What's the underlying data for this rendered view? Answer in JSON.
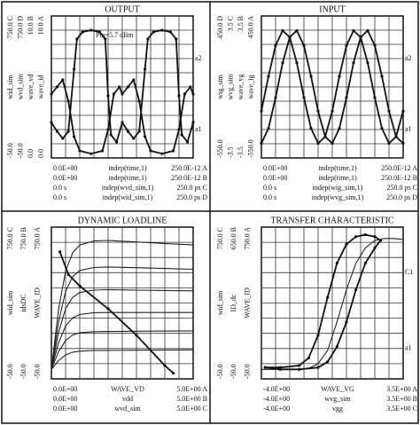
{
  "chart_data": [
    {
      "type": "line",
      "title": "OUTPUT",
      "annotation": "Pin=5.7 dBm",
      "grid": true,
      "xlim": [
        0,
        250
      ],
      "ylim": [
        -50,
        750
      ],
      "y_labels": [
        {
          "top": "750.0 C",
          "name": "wid_sim",
          "bottom": "-50.0"
        },
        {
          "top": "750.0 D",
          "name": "wvd_sim",
          "bottom": "-50.0"
        },
        {
          "top": "10.0 B",
          "name": "wave_vd",
          "bottom": "0.0"
        },
        {
          "top": "10.0 A",
          "name": "wave_id",
          "bottom": "0.0"
        }
      ],
      "x_rows": [
        {
          "min": "0.0E+00",
          "name": "indep(time,1)",
          "max": "250.0E-12 A"
        },
        {
          "min": "0.0E+00",
          "name": "indep(time,1)",
          "max": "250.0E-12 B"
        },
        {
          "min": "0.0  s",
          "name": "indep(wvd_sim,1)",
          "max": "250.0  ps C"
        },
        {
          "min": "0.0  s",
          "name": "indep(wid_sim,1)",
          "max": "250.0  ps D"
        }
      ],
      "right_labels": [
        "a2",
        "a1"
      ],
      "series": [
        {
          "color": "#111",
          "marker": true,
          "x": [
            0,
            10,
            20,
            30,
            40,
            45,
            55,
            70,
            85,
            95,
            100,
            105,
            115,
            125,
            135,
            145,
            155,
            165,
            170,
            180,
            195,
            210,
            220,
            225,
            230,
            240,
            250
          ],
          "values": [
            150,
            100,
            60,
            100,
            450,
            620,
            660,
            670,
            660,
            620,
            300,
            80,
            40,
            150,
            100,
            60,
            100,
            450,
            620,
            660,
            670,
            660,
            620,
            300,
            80,
            40,
            150
          ]
        },
        {
          "color": "#111",
          "marker": true,
          "ylim": [
            0,
            10
          ],
          "x": [
            0,
            10,
            20,
            30,
            40,
            50,
            70,
            90,
            100,
            110,
            120,
            125,
            135,
            145,
            155,
            165,
            175,
            195,
            215,
            225,
            235,
            245,
            250
          ],
          "values": [
            4.5,
            5,
            5.5,
            4,
            1.5,
            0.5,
            0.3,
            0.5,
            2,
            4.5,
            5,
            4.5,
            5,
            5.5,
            4,
            1.5,
            0.5,
            0.3,
            0.5,
            2,
            4.5,
            5,
            4.5
          ]
        }
      ]
    },
    {
      "type": "line",
      "title": "INPUT",
      "grid": true,
      "xlim": [
        0,
        250
      ],
      "ylim": [
        -550,
        450
      ],
      "y_labels": [
        {
          "top": "450.0 D",
          "name": "wig_sim",
          "bottom": "-550.0"
        },
        {
          "top": "3.5 C",
          "name": "wvg_sim",
          "bottom": "-3.5"
        },
        {
          "top": "3.5 B",
          "name": "wave_vg",
          "bottom": "-3.5"
        },
        {
          "top": "450.0 A",
          "name": "wave_ig",
          "bottom": "-550.0"
        }
      ],
      "x_rows": [
        {
          "min": "0.0E+00",
          "name": "indep(time,1)",
          "max": "250.0E-12 A"
        },
        {
          "min": "0.0E+00",
          "name": "indep(time,1)",
          "max": "250.0E-12 B"
        },
        {
          "min": "0.0  s",
          "name": "indep(wig_sim,1)",
          "max": "250.0  ps C"
        },
        {
          "min": "0.0  s",
          "name": "indep(wvg_sim,1)",
          "max": "250.0  ps D"
        }
      ],
      "right_labels": [
        "a2",
        "a1"
      ],
      "series": [
        {
          "color": "#111",
          "marker": true,
          "ylim": [
            -3.5,
            3.5
          ],
          "x": [
            0,
            12.5,
            25,
            37.5,
            50,
            62.5,
            75,
            87.5,
            100,
            112.5,
            125,
            137.5,
            150,
            162.5,
            175,
            187.5,
            200,
            212.5,
            225,
            237.5,
            250
          ],
          "values": [
            -1.19,
            0.52,
            2.04,
            2.78,
            2.45,
            1.19,
            -0.52,
            -2.04,
            -2.78,
            -2.45,
            -1.19,
            0.52,
            2.04,
            2.78,
            2.45,
            1.19,
            -0.52,
            -2.04,
            -2.78,
            -2.45,
            -1.19
          ]
        },
        {
          "color": "#111",
          "marker": true,
          "x": [
            0,
            12.5,
            25,
            37.5,
            50,
            62.5,
            75,
            87.5,
            100,
            112.5,
            125,
            137.5,
            150,
            162.5,
            175,
            187.5,
            200,
            212.5,
            225,
            237.5,
            250
          ],
          "values": [
            -447,
            -342,
            -125,
            120,
            300,
            347,
            242,
            25,
            -220,
            -400,
            -447,
            -342,
            -125,
            120,
            300,
            347,
            242,
            25,
            -220,
            -400,
            -447
          ]
        }
      ]
    },
    {
      "type": "line",
      "title": "DYNAMIC LOADLINE",
      "grid": true,
      "xlim": [
        0,
        5
      ],
      "ylim": [
        -50,
        750
      ],
      "y_labels": [
        {
          "top": "750.0 C",
          "name": "wid_sim",
          "bottom": "-50.0"
        },
        {
          "top": "750.0 B",
          "name": "idsDC",
          "bottom": "-50.0"
        },
        {
          "top": "750.0 A",
          "name": "WAVE_ID",
          "bottom": "-50.0"
        }
      ],
      "x_rows": [
        {
          "min": "0.0E+00",
          "name": "WAVE_VD",
          "max": "5.0E+00 A"
        },
        {
          "min": "0.0E+00",
          "name": "vdd",
          "max": "5.0E+00 B"
        },
        {
          "min": "0.0E+00",
          "name": "wvd_sim",
          "max": "5.0E+00 C"
        }
      ],
      "series": [
        {
          "color": "#222",
          "x": [
            0,
            0.25,
            0.5,
            0.75,
            1,
            1.5,
            2,
            3,
            4,
            5
          ],
          "values": [
            0,
            46,
            76,
            91,
            96,
            100,
            100,
            101,
            102,
            103
          ]
        },
        {
          "color": "#222",
          "x": [
            0,
            0.25,
            0.5,
            0.75,
            1,
            1.5,
            2,
            3,
            4,
            5
          ],
          "values": [
            0,
            92,
            152,
            181,
            193,
            199,
            200,
            201,
            202,
            203
          ]
        },
        {
          "color": "#222",
          "x": [
            0,
            0.25,
            0.5,
            0.75,
            1,
            1.5,
            2,
            3,
            4,
            5
          ],
          "values": [
            0,
            139,
            229,
            272,
            289,
            299,
            300,
            300,
            300,
            300
          ]
        },
        {
          "color": "#222",
          "x": [
            0,
            0.25,
            0.5,
            0.75,
            1,
            1.5,
            2,
            3,
            4,
            5
          ],
          "values": [
            0,
            194,
            320,
            380,
            405,
            418,
            420,
            418,
            416,
            414
          ]
        },
        {
          "color": "#222",
          "x": [
            0,
            0.25,
            0.5,
            0.75,
            1,
            1.5,
            2,
            3,
            4,
            5
          ],
          "values": [
            0,
            249,
            411,
            489,
            521,
            537,
            540,
            536,
            532,
            528
          ]
        },
        {
          "color": "#222",
          "x": [
            0,
            0.25,
            0.5,
            0.75,
            1,
            1.5,
            2,
            3,
            4,
            5
          ],
          "values": [
            0,
            314,
            518,
            615,
            656,
            677,
            680,
            672,
            664,
            656
          ]
        },
        {
          "color": "#111",
          "marker": true,
          "x": [
            0.3,
            0.6,
            1,
            2,
            3,
            4,
            4.3
          ],
          "values": [
            620,
            500,
            440,
            320,
            180,
            20,
            -20
          ]
        }
      ]
    },
    {
      "type": "line",
      "title": "TRANSFER CHARACTERISTIC",
      "grid": true,
      "xlim": [
        -4,
        3.5
      ],
      "ylim": [
        -50,
        750
      ],
      "y_labels": [
        {
          "top": "750.0 C",
          "name": "wid_sim",
          "bottom": "-50.0"
        },
        {
          "top": "650.0 B",
          "name": "ID_dc",
          "bottom": "-50.0"
        },
        {
          "top": "750.0 A",
          "name": "WAVE_ID",
          "bottom": "-50.0"
        }
      ],
      "x_rows": [
        {
          "min": "-4.0E+00",
          "name": "WAVE_VG",
          "max": "3.5E+00 A"
        },
        {
          "min": "-4.0E+00",
          "name": "wvg_sim",
          "max": "3.5E+00 B"
        },
        {
          "min": "-4.0E+00",
          "name": "vgg",
          "max": "3.5E+00 C"
        }
      ],
      "right_labels": [
        "C1",
        "a1"
      ],
      "series": [
        {
          "color": "#222",
          "x": [
            -4,
            -3,
            -2,
            -1.5,
            -1,
            -0.5,
            0,
            0.5,
            1,
            1.5,
            2,
            2.5,
            3,
            3.5
          ],
          "values": [
            0,
            0,
            0,
            5,
            30,
            100,
            250,
            420,
            560,
            640,
            680,
            690,
            690,
            685
          ]
        },
        {
          "color": "#111",
          "marker": true,
          "x": [
            -3.8,
            -3,
            -2,
            -1.5,
            -1,
            -0.5,
            0,
            0.5,
            1,
            1.5,
            2,
            2.3,
            2,
            1.5,
            1,
            0.5,
            0,
            -0.5,
            -1,
            -2,
            -3,
            -3.8
          ],
          "values": [
            10,
            10,
            20,
            60,
            180,
            380,
            560,
            660,
            700,
            710,
            700,
            680,
            640,
            560,
            420,
            250,
            120,
            40,
            10,
            0,
            0,
            10
          ]
        }
      ]
    }
  ]
}
